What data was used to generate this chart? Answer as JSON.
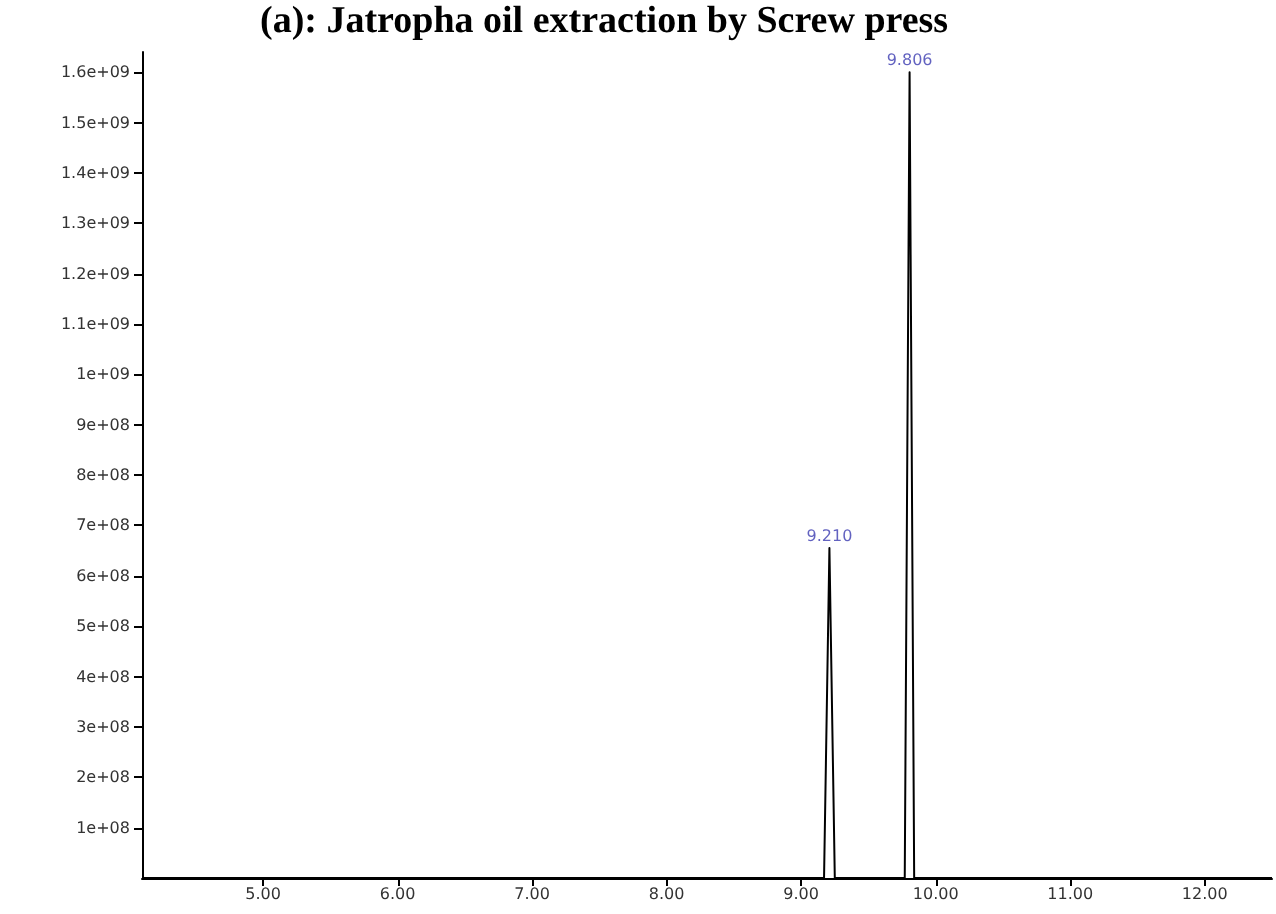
{
  "chart_data": {
    "type": "line",
    "title": "(a): Jatropha oil extraction by Screw press",
    "x": [
      4.1,
      9.17,
      9.21,
      9.25,
      9.77,
      9.806,
      9.84,
      12.5
    ],
    "series": [
      {
        "color": "#000000",
        "values": [
          0,
          0,
          655000000.0,
          0,
          0,
          1600000000.0,
          0,
          0
        ]
      }
    ],
    "xlim": [
      4.1,
      12.5
    ],
    "xticks": [
      {
        "value": 5,
        "label": "5.00"
      },
      {
        "value": 6,
        "label": "6.00"
      },
      {
        "value": 7,
        "label": "7.00"
      },
      {
        "value": 8,
        "label": "8.00"
      },
      {
        "value": 9,
        "label": "9.00"
      },
      {
        "value": 10,
        "label": "10.00"
      },
      {
        "value": 11,
        "label": "11.00"
      },
      {
        "value": 12,
        "label": "12.00"
      }
    ],
    "ylim": [
      0,
      1640000000.0
    ],
    "yticks": [
      {
        "value": 100000000.0,
        "label": "1e+08"
      },
      {
        "value": 200000000.0,
        "label": "2e+08"
      },
      {
        "value": 300000000.0,
        "label": "3e+08"
      },
      {
        "value": 400000000.0,
        "label": "4e+08"
      },
      {
        "value": 500000000.0,
        "label": "5e+08"
      },
      {
        "value": 600000000.0,
        "label": "6e+08"
      },
      {
        "value": 700000000.0,
        "label": "7e+08"
      },
      {
        "value": 800000000.0,
        "label": "8e+08"
      },
      {
        "value": 900000000.0,
        "label": "9e+08"
      },
      {
        "value": 1000000000.0,
        "label": "1e+09"
      },
      {
        "value": 1100000000.0,
        "label": "1.1e+09"
      },
      {
        "value": 1200000000.0,
        "label": "1.2e+09"
      },
      {
        "value": 1300000000.0,
        "label": "1.3e+09"
      },
      {
        "value": 1400000000.0,
        "label": "1.4e+09"
      },
      {
        "value": 1500000000.0,
        "label": "1.5e+09"
      },
      {
        "value": 1600000000.0,
        "label": "1.6e+09"
      }
    ],
    "annotations": [
      {
        "text": "9.210",
        "x": 9.21,
        "y": 655000000.0
      },
      {
        "text": "9.806",
        "x": 9.806,
        "y": 1600000000.0
      }
    ],
    "grid": false,
    "marker": "none",
    "line_style": "solid"
  }
}
